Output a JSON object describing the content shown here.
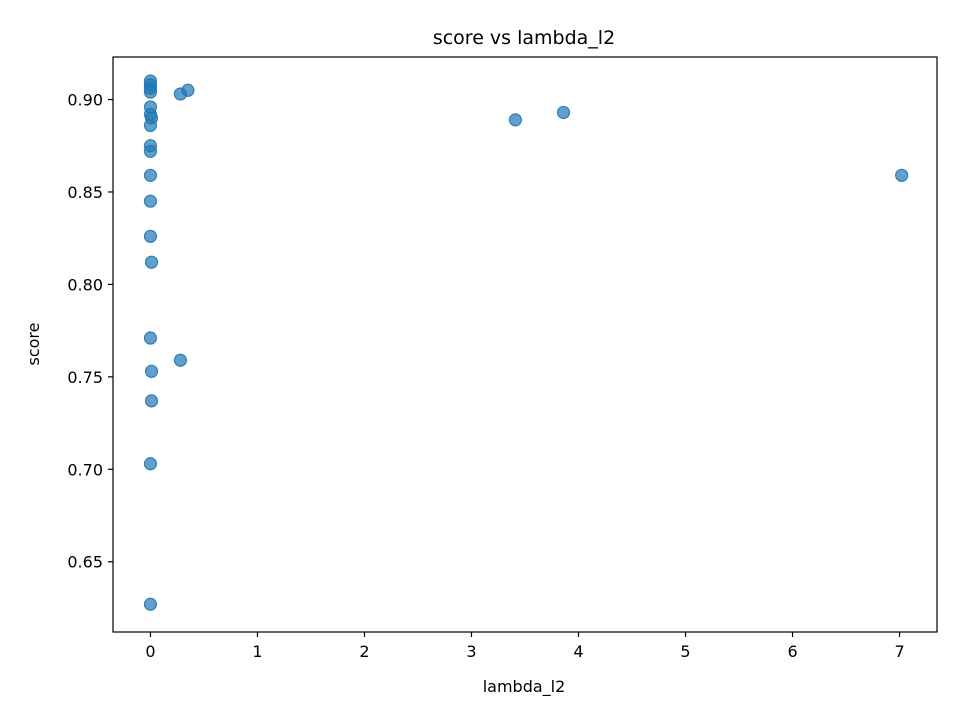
{
  "chart_data": {
    "type": "scatter",
    "title": "score vs lambda_l2",
    "xlabel": "lambda_l2",
    "ylabel": "score",
    "xlim": [
      -0.35,
      7.35
    ],
    "ylim": [
      0.612,
      0.923
    ],
    "xticks": [
      0,
      1,
      2,
      3,
      4,
      5,
      6,
      7
    ],
    "xtick_labels": [
      "0",
      "1",
      "2",
      "3",
      "4",
      "5",
      "6",
      "7"
    ],
    "yticks": [
      0.65,
      0.7,
      0.75,
      0.8,
      0.85,
      0.9
    ],
    "ytick_labels": [
      "0.65",
      "0.70",
      "0.75",
      "0.80",
      "0.85",
      "0.90"
    ],
    "grid": false,
    "marker_color": "#1f77b4",
    "marker_alpha": 0.7,
    "points": [
      {
        "x": 0.0,
        "y": 0.91
      },
      {
        "x": 0.0,
        "y": 0.908
      },
      {
        "x": 0.0,
        "y": 0.906
      },
      {
        "x": 0.0,
        "y": 0.904
      },
      {
        "x": 0.0,
        "y": 0.896
      },
      {
        "x": 0.0,
        "y": 0.892
      },
      {
        "x": 0.01,
        "y": 0.89
      },
      {
        "x": 0.0,
        "y": 0.886
      },
      {
        "x": 0.0,
        "y": 0.875
      },
      {
        "x": 0.0,
        "y": 0.872
      },
      {
        "x": 0.0,
        "y": 0.859
      },
      {
        "x": 0.0,
        "y": 0.845
      },
      {
        "x": 0.0,
        "y": 0.826
      },
      {
        "x": 0.01,
        "y": 0.812
      },
      {
        "x": 0.0,
        "y": 0.771
      },
      {
        "x": 0.01,
        "y": 0.753
      },
      {
        "x": 0.01,
        "y": 0.737
      },
      {
        "x": 0.0,
        "y": 0.703
      },
      {
        "x": 0.0,
        "y": 0.627
      },
      {
        "x": 0.28,
        "y": 0.903
      },
      {
        "x": 0.35,
        "y": 0.905
      },
      {
        "x": 0.28,
        "y": 0.759
      },
      {
        "x": 3.41,
        "y": 0.889
      },
      {
        "x": 3.86,
        "y": 0.893
      },
      {
        "x": 7.02,
        "y": 0.859
      }
    ]
  }
}
